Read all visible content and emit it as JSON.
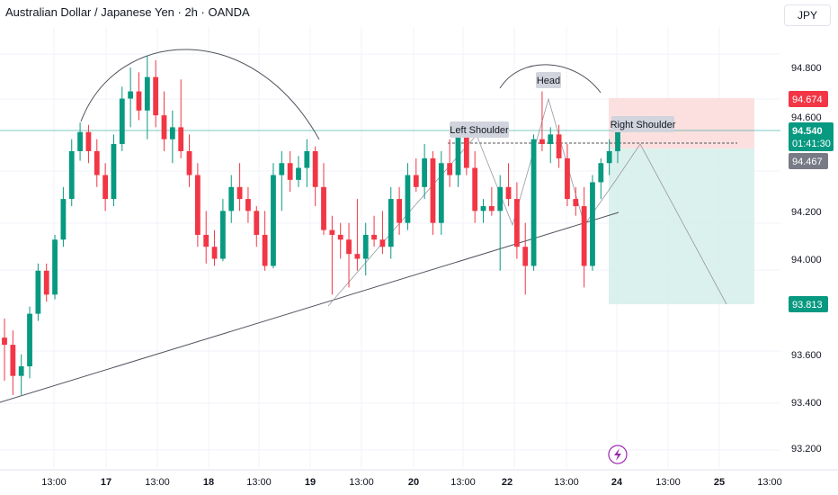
{
  "header": {
    "symbol_title": "Australian Dollar / Japanese Yen · 2h · OANDA",
    "currency": "JPY"
  },
  "colors": {
    "up": "#089981",
    "down": "#f23645",
    "stop_zone": "#fcdada",
    "target_zone": "#d7f0eb",
    "price_line": "#26a69a"
  },
  "price_axis": {
    "ticks": [
      "94.800",
      "94.600",
      "94.200",
      "94.000",
      "93.600",
      "93.400",
      "93.200"
    ]
  },
  "price_tags": {
    "stop": "94.674",
    "current": "94.540",
    "countdown": "01:41:30",
    "entry": "94.467",
    "target": "93.813"
  },
  "time_axis": {
    "ticks": [
      "13:00",
      "17",
      "13:00",
      "18",
      "13:00",
      "19",
      "13:00",
      "20",
      "13:00",
      "22",
      "13:00",
      "24",
      "13:00",
      "25",
      "13:00"
    ]
  },
  "annotations": {
    "left_shoulder": "Left Shoulder",
    "head": "Head",
    "right_shoulder": "Right Shoulder"
  },
  "footer": {
    "lightning_icon": "lightning-icon"
  },
  "chart_data": {
    "type": "candlestick",
    "symbol": "Australian Dollar / Japanese Yen",
    "interval": "2h",
    "ylim": [
      93.15,
      94.95
    ],
    "candles": [
      [
        93.67,
        93.75,
        93.49,
        93.64
      ],
      [
        93.64,
        93.7,
        93.43,
        93.51
      ],
      [
        93.51,
        93.6,
        93.43,
        93.55
      ],
      [
        93.55,
        93.8,
        93.5,
        93.77
      ],
      [
        93.77,
        93.98,
        93.74,
        93.95
      ],
      [
        93.95,
        93.98,
        93.82,
        93.85
      ],
      [
        93.85,
        94.1,
        93.83,
        94.08
      ],
      [
        94.08,
        94.3,
        94.05,
        94.25
      ],
      [
        94.25,
        94.5,
        94.22,
        94.45
      ],
      [
        94.45,
        94.57,
        94.41,
        94.53
      ],
      [
        94.53,
        94.56,
        94.4,
        94.45
      ],
      [
        94.45,
        94.5,
        94.3,
        94.35
      ],
      [
        94.35,
        94.4,
        94.2,
        94.25
      ],
      [
        94.25,
        94.52,
        94.22,
        94.48
      ],
      [
        94.48,
        94.72,
        94.45,
        94.67
      ],
      [
        94.67,
        94.8,
        94.55,
        94.7
      ],
      [
        94.7,
        94.78,
        94.58,
        94.62
      ],
      [
        94.62,
        94.85,
        94.5,
        94.76
      ],
      [
        94.76,
        94.83,
        94.55,
        94.6
      ],
      [
        94.6,
        94.7,
        94.45,
        94.5
      ],
      [
        94.5,
        94.62,
        94.4,
        94.55
      ],
      [
        94.55,
        94.75,
        94.42,
        94.45
      ],
      [
        94.45,
        94.52,
        94.3,
        94.35
      ],
      [
        94.35,
        94.4,
        94.05,
        94.1
      ],
      [
        94.1,
        94.2,
        93.98,
        94.05
      ],
      [
        94.05,
        94.12,
        93.97,
        94.0
      ],
      [
        94.0,
        94.25,
        93.99,
        94.2
      ],
      [
        94.2,
        94.35,
        94.15,
        94.3
      ],
      [
        94.3,
        94.4,
        94.2,
        94.25
      ],
      [
        94.25,
        94.3,
        94.15,
        94.2
      ],
      [
        94.2,
        94.22,
        94.05,
        94.1
      ],
      [
        94.1,
        94.2,
        93.95,
        93.97
      ],
      [
        93.97,
        94.4,
        93.96,
        94.35
      ],
      [
        94.35,
        94.45,
        94.2,
        94.4
      ],
      [
        94.4,
        94.45,
        94.28,
        94.33
      ],
      [
        94.33,
        94.43,
        94.3,
        94.38
      ],
      [
        94.38,
        94.5,
        94.3,
        94.45
      ],
      [
        94.45,
        94.47,
        94.22,
        94.3
      ],
      [
        94.3,
        94.4,
        94.1,
        94.12
      ],
      [
        94.12,
        94.18,
        93.85,
        94.1
      ],
      [
        94.1,
        94.15,
        94.0,
        94.08
      ],
      [
        94.08,
        94.15,
        93.88,
        94.02
      ],
      [
        94.02,
        94.25,
        93.95,
        94.0
      ],
      [
        94.0,
        94.15,
        93.93,
        94.1
      ],
      [
        94.1,
        94.18,
        94.05,
        94.08
      ],
      [
        94.08,
        94.2,
        94.02,
        94.05
      ],
      [
        94.05,
        94.3,
        94.0,
        94.25
      ],
      [
        94.25,
        94.3,
        94.1,
        94.15
      ],
      [
        94.15,
        94.4,
        94.12,
        94.35
      ],
      [
        94.35,
        94.42,
        94.28,
        94.3
      ],
      [
        94.3,
        94.48,
        94.25,
        94.42
      ],
      [
        94.42,
        94.45,
        94.1,
        94.15
      ],
      [
        94.15,
        94.45,
        94.1,
        94.4
      ],
      [
        94.4,
        94.5,
        94.3,
        94.35
      ],
      [
        94.35,
        94.55,
        94.3,
        94.52
      ],
      [
        94.52,
        94.56,
        94.35,
        94.38
      ],
      [
        94.38,
        94.45,
        94.15,
        94.2
      ],
      [
        94.2,
        94.25,
        94.15,
        94.22
      ],
      [
        94.22,
        94.3,
        94.18,
        94.2
      ],
      [
        94.2,
        94.35,
        93.95,
        94.3
      ],
      [
        94.3,
        94.4,
        94.22,
        94.25
      ],
      [
        94.25,
        94.32,
        94.0,
        94.05
      ],
      [
        94.05,
        94.15,
        93.85,
        93.97
      ],
      [
        93.97,
        94.52,
        93.95,
        94.5
      ],
      [
        94.5,
        94.7,
        94.45,
        94.48
      ],
      [
        94.48,
        94.55,
        94.4,
        94.52
      ],
      [
        94.52,
        94.56,
        94.38,
        94.42
      ],
      [
        94.42,
        94.48,
        94.22,
        94.25
      ],
      [
        94.25,
        94.3,
        94.18,
        94.22
      ],
      [
        94.22,
        94.3,
        93.88,
        93.97
      ],
      [
        93.97,
        94.35,
        93.95,
        94.32
      ],
      [
        94.32,
        94.42,
        94.25,
        94.4
      ],
      [
        94.4,
        94.5,
        94.35,
        94.45
      ],
      [
        94.45,
        94.58,
        94.4,
        94.54
      ]
    ]
  }
}
